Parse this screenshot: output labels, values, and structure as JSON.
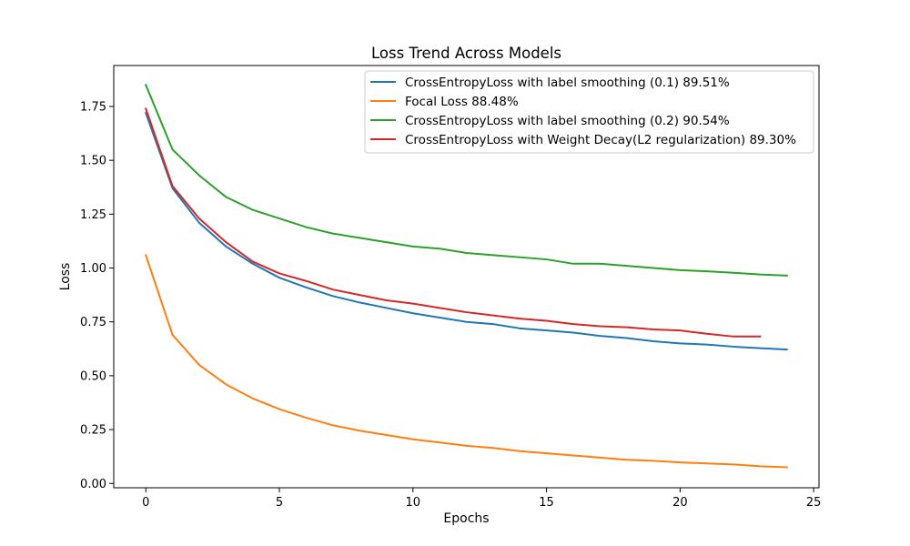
{
  "chart_data": {
    "type": "line",
    "title": "Loss Trend Across Models",
    "xlabel": "Epochs",
    "ylabel": "Loss",
    "xlim": [
      -1.2,
      25.2
    ],
    "ylim": [
      -0.02,
      1.94
    ],
    "xticks": [
      0,
      5,
      10,
      15,
      20,
      25
    ],
    "yticks": [
      0.0,
      0.25,
      0.5,
      0.75,
      1.0,
      1.25,
      1.5,
      1.75
    ],
    "ytick_labels": [
      "0.00",
      "0.25",
      "0.50",
      "0.75",
      "1.00",
      "1.25",
      "1.50",
      "1.75"
    ],
    "grid": false,
    "legend_position": "upper right",
    "series": [
      {
        "name": "CrossEntropyLoss with label smoothing (0.1) 89.51%",
        "color": "#1f77b4",
        "x": [
          0,
          1,
          2,
          3,
          4,
          5,
          6,
          7,
          8,
          9,
          10,
          11,
          12,
          13,
          14,
          15,
          16,
          17,
          18,
          19,
          20,
          21,
          22,
          23,
          24
        ],
        "values": [
          1.72,
          1.37,
          1.21,
          1.1,
          1.02,
          0.955,
          0.91,
          0.87,
          0.84,
          0.815,
          0.79,
          0.77,
          0.75,
          0.74,
          0.72,
          0.71,
          0.7,
          0.685,
          0.675,
          0.66,
          0.65,
          0.645,
          0.635,
          0.628,
          0.622
        ]
      },
      {
        "name": "Focal Loss 88.48%",
        "color": "#ff7f0e",
        "x": [
          0,
          1,
          2,
          3,
          4,
          5,
          6,
          7,
          8,
          9,
          10,
          11,
          12,
          13,
          14,
          15,
          16,
          17,
          18,
          19,
          20,
          21,
          22,
          23,
          24
        ],
        "values": [
          1.06,
          0.69,
          0.55,
          0.46,
          0.395,
          0.345,
          0.305,
          0.27,
          0.245,
          0.225,
          0.205,
          0.19,
          0.175,
          0.165,
          0.15,
          0.14,
          0.13,
          0.12,
          0.11,
          0.105,
          0.098,
          0.093,
          0.088,
          0.08,
          0.075
        ]
      },
      {
        "name": "CrossEntropyLoss with label smoothing (0.2) 90.54%",
        "color": "#2ca02c",
        "x": [
          0,
          1,
          2,
          3,
          4,
          5,
          6,
          7,
          8,
          9,
          10,
          11,
          12,
          13,
          14,
          15,
          16,
          17,
          18,
          19,
          20,
          21,
          22,
          23,
          24
        ],
        "values": [
          1.85,
          1.55,
          1.43,
          1.33,
          1.27,
          1.23,
          1.19,
          1.16,
          1.14,
          1.12,
          1.1,
          1.09,
          1.07,
          1.06,
          1.05,
          1.04,
          1.02,
          1.02,
          1.01,
          1.0,
          0.99,
          0.985,
          0.978,
          0.97,
          0.965
        ]
      },
      {
        "name": "CrossEntropyLoss with Weight Decay(L2 regularization) 89.30%",
        "color": "#d62728",
        "x": [
          0,
          1,
          2,
          3,
          4,
          5,
          6,
          7,
          8,
          9,
          10,
          11,
          12,
          13,
          14,
          15,
          16,
          17,
          18,
          19,
          20,
          21,
          22,
          23
        ],
        "values": [
          1.74,
          1.38,
          1.23,
          1.12,
          1.03,
          0.975,
          0.94,
          0.9,
          0.875,
          0.85,
          0.835,
          0.815,
          0.795,
          0.78,
          0.765,
          0.755,
          0.74,
          0.73,
          0.725,
          0.715,
          0.71,
          0.695,
          0.682,
          0.682
        ]
      }
    ]
  }
}
